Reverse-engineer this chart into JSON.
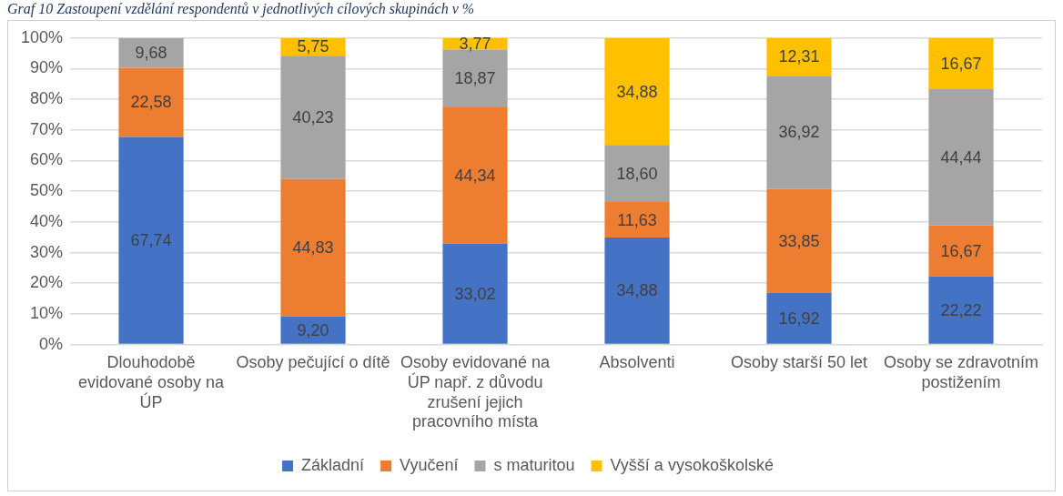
{
  "chart_data": {
    "type": "bar",
    "stacked": true,
    "title": "Graf 10 Zastoupení vzdělání respondentů v jednotlivých cílových skupinách v %",
    "categories": [
      "Dlouhodobě evidované osoby na ÚP",
      "Osoby pečující o dítě",
      "Osoby evidované na ÚP např. z důvodu zrušení jejich pracovního místa",
      "Absolventi",
      "Osoby starší 50 let",
      "Osoby se zdravotním postižením"
    ],
    "series": [
      {
        "name": "Základní",
        "color": "#4472c4",
        "values": [
          67.74,
          9.2,
          33.02,
          34.88,
          16.92,
          22.22
        ],
        "value_labels": [
          "67,74",
          "9,20",
          "33,02",
          "34,88",
          "16,92",
          "22,22"
        ]
      },
      {
        "name": "Vyučení",
        "color": "#ed7d31",
        "values": [
          22.58,
          44.83,
          44.34,
          11.63,
          33.85,
          16.67
        ],
        "value_labels": [
          "22,58",
          "44,83",
          "44,34",
          "11,63",
          "33,85",
          "16,67"
        ]
      },
      {
        "name": "s maturitou",
        "color": "#a5a5a5",
        "values": [
          9.68,
          40.23,
          18.87,
          18.6,
          36.92,
          44.44
        ],
        "value_labels": [
          "9,68",
          "40,23",
          "18,87",
          "18,60",
          "36,92",
          "44,44"
        ]
      },
      {
        "name": "Vyšší a vysokoškolské",
        "color": "#ffc000",
        "values": [
          null,
          5.75,
          3.77,
          34.88,
          12.31,
          16.67
        ],
        "value_labels": [
          null,
          "5,75",
          "3,77",
          "34,88",
          "12,31",
          "16,67"
        ]
      }
    ],
    "ylim": [
      0,
      100
    ],
    "yticks": [
      {
        "value": 0,
        "label": "0%"
      },
      {
        "value": 10,
        "label": "10%"
      },
      {
        "value": 20,
        "label": "20%"
      },
      {
        "value": 30,
        "label": "30%"
      },
      {
        "value": 40,
        "label": "40%"
      },
      {
        "value": 50,
        "label": "50%"
      },
      {
        "value": 60,
        "label": "60%"
      },
      {
        "value": 70,
        "label": "70%"
      },
      {
        "value": 80,
        "label": "80%"
      },
      {
        "value": 90,
        "label": "90%"
      },
      {
        "value": 100,
        "label": "100%"
      }
    ],
    "grid": "y",
    "legend": "bottom"
  }
}
